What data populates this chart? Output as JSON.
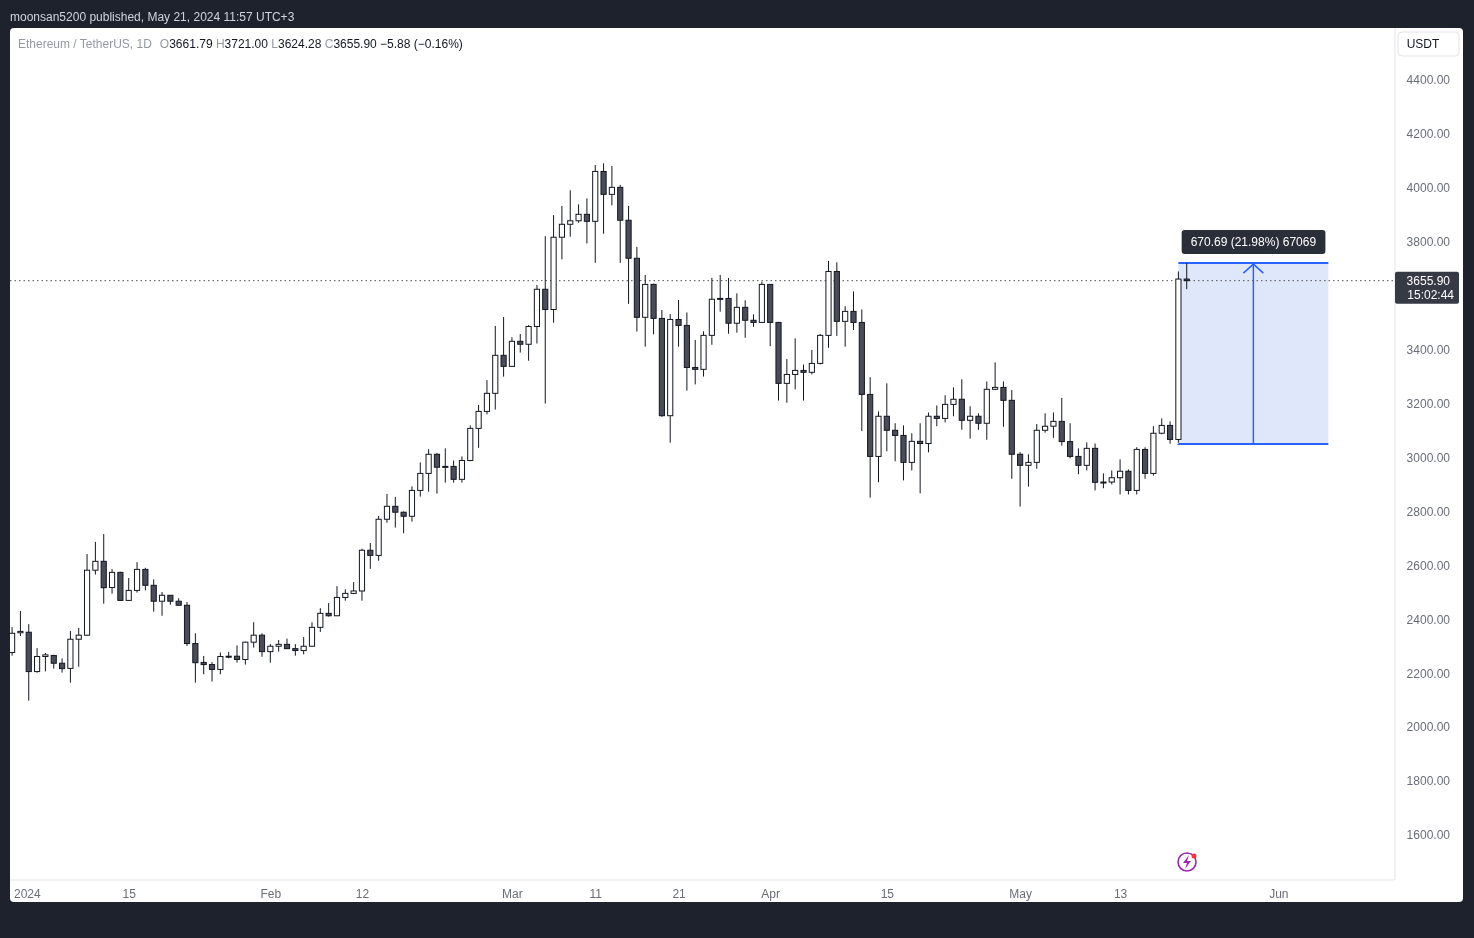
{
  "chart_data": {
    "type": "candlestick",
    "title": "Ethereum / TetherUS, 1D",
    "subtitle": "O3661.79 H3721.00 L3624.28 C3655.90 −5.88 (−0.16%)",
    "ylabel": "USDT",
    "annotations": [
      "moonsan5200 published, May 21, 2024 11:57 UTC+3",
      "15:02:44"
    ],
    "x": [
      "2024-01-01",
      "2024-01-02",
      "2024-01-03",
      "2024-01-04",
      "2024-01-05",
      "2024-01-06",
      "2024-01-07",
      "2024-01-08",
      "2024-01-09",
      "2024-01-10",
      "2024-01-11",
      "2024-01-12",
      "2024-01-13",
      "2024-01-14",
      "2024-01-15",
      "2024-01-16",
      "2024-01-17",
      "2024-01-18",
      "2024-01-19",
      "2024-01-20",
      "2024-01-21",
      "2024-01-22",
      "2024-01-23",
      "2024-01-24",
      "2024-01-25",
      "2024-01-26",
      "2024-01-27",
      "2024-01-28",
      "2024-01-29",
      "2024-01-30",
      "2024-01-31",
      "2024-02-01",
      "2024-02-02",
      "2024-02-03",
      "2024-02-04",
      "2024-02-05",
      "2024-02-06",
      "2024-02-07",
      "2024-02-08",
      "2024-02-09",
      "2024-02-10",
      "2024-02-11",
      "2024-02-12",
      "2024-02-13",
      "2024-02-14",
      "2024-02-15",
      "2024-02-16",
      "2024-02-17",
      "2024-02-18",
      "2024-02-19",
      "2024-02-20",
      "2024-02-21",
      "2024-02-22",
      "2024-02-23",
      "2024-02-24",
      "2024-02-25",
      "2024-02-26",
      "2024-02-27",
      "2024-02-28",
      "2024-02-29",
      "2024-03-01",
      "2024-03-02",
      "2024-03-03",
      "2024-03-04",
      "2024-03-05",
      "2024-03-06",
      "2024-03-07",
      "2024-03-08",
      "2024-03-09",
      "2024-03-10",
      "2024-03-11",
      "2024-03-12",
      "2024-03-13",
      "2024-03-14",
      "2024-03-15",
      "2024-03-16",
      "2024-03-17",
      "2024-03-18",
      "2024-03-19",
      "2024-03-20",
      "2024-03-21",
      "2024-03-22",
      "2024-03-23",
      "2024-03-24",
      "2024-03-25",
      "2024-03-26",
      "2024-03-27",
      "2024-03-28",
      "2024-03-29",
      "2024-03-30",
      "2024-03-31",
      "2024-04-01",
      "2024-04-02",
      "2024-04-03",
      "2024-04-04",
      "2024-04-05",
      "2024-04-06",
      "2024-04-07",
      "2024-04-08",
      "2024-04-09",
      "2024-04-10",
      "2024-04-11",
      "2024-04-12",
      "2024-04-13",
      "2024-04-14",
      "2024-04-15",
      "2024-04-16",
      "2024-04-17",
      "2024-04-18",
      "2024-04-19",
      "2024-04-20",
      "2024-04-21",
      "2024-04-22",
      "2024-04-23",
      "2024-04-24",
      "2024-04-25",
      "2024-04-26",
      "2024-04-27",
      "2024-04-28",
      "2024-04-29",
      "2024-04-30",
      "2024-05-01",
      "2024-05-02",
      "2024-05-03",
      "2024-05-04",
      "2024-05-05",
      "2024-05-06",
      "2024-05-07",
      "2024-05-08",
      "2024-05-09",
      "2024-05-10",
      "2024-05-11",
      "2024-05-12",
      "2024-05-13",
      "2024-05-14",
      "2024-05-15",
      "2024-05-16",
      "2024-05-17",
      "2024-05-18",
      "2024-05-19",
      "2024-05-20",
      "2024-05-21"
    ],
    "ohlc": [
      [
        2277,
        2371,
        2265,
        2348
      ],
      [
        2350,
        2431,
        2338,
        2355
      ],
      [
        2352,
        2382,
        2098,
        2206
      ],
      [
        2206,
        2293,
        2202,
        2262
      ],
      [
        2262,
        2275,
        2207,
        2268
      ],
      [
        2266,
        2268,
        2217,
        2237
      ],
      [
        2237,
        2255,
        2202,
        2217
      ],
      [
        2218,
        2357,
        2165,
        2326
      ],
      [
        2326,
        2368,
        2224,
        2341
      ],
      [
        2341,
        2642,
        2339,
        2582
      ],
      [
        2582,
        2687,
        2566,
        2615
      ],
      [
        2615,
        2716,
        2458,
        2517
      ],
      [
        2518,
        2586,
        2495,
        2574
      ],
      [
        2574,
        2576,
        2468,
        2470
      ],
      [
        2470,
        2553,
        2468,
        2507
      ],
      [
        2507,
        2612,
        2499,
        2585
      ],
      [
        2585,
        2591,
        2507,
        2526
      ],
      [
        2526,
        2548,
        2428,
        2467
      ],
      [
        2467,
        2501,
        2413,
        2489
      ],
      [
        2489,
        2490,
        2454,
        2467
      ],
      [
        2467,
        2478,
        2451,
        2452
      ],
      [
        2452,
        2464,
        2301,
        2310
      ],
      [
        2310,
        2348,
        2165,
        2239
      ],
      [
        2240,
        2264,
        2196,
        2232
      ],
      [
        2232,
        2241,
        2169,
        2214
      ],
      [
        2214,
        2277,
        2196,
        2262
      ],
      [
        2262,
        2279,
        2255,
        2263
      ],
      [
        2263,
        2303,
        2239,
        2251
      ],
      [
        2251,
        2317,
        2232,
        2315
      ],
      [
        2315,
        2389,
        2295,
        2341
      ],
      [
        2341,
        2348,
        2261,
        2280
      ],
      [
        2280,
        2308,
        2239,
        2300
      ],
      [
        2300,
        2323,
        2280,
        2307
      ],
      [
        2307,
        2328,
        2290,
        2291
      ],
      [
        2291,
        2308,
        2265,
        2284
      ],
      [
        2284,
        2334,
        2270,
        2300
      ],
      [
        2300,
        2389,
        2299,
        2370
      ],
      [
        2370,
        2441,
        2353,
        2422
      ],
      [
        2422,
        2460,
        2410,
        2413
      ],
      [
        2413,
        2523,
        2412,
        2481
      ],
      [
        2481,
        2511,
        2469,
        2496
      ],
      [
        2496,
        2538,
        2493,
        2505
      ],
      [
        2505,
        2662,
        2469,
        2656
      ],
      [
        2656,
        2683,
        2587,
        2637
      ],
      [
        2637,
        2783,
        2617,
        2771
      ],
      [
        2771,
        2865,
        2758,
        2819
      ],
      [
        2819,
        2854,
        2740,
        2797
      ],
      [
        2797,
        2800,
        2719,
        2782
      ],
      [
        2782,
        2893,
        2762,
        2878
      ],
      [
        2878,
        2982,
        2855,
        2941
      ],
      [
        2941,
        3031,
        2873,
        3012
      ],
      [
        3012,
        3017,
        2866,
        2964
      ],
      [
        2964,
        3034,
        2907,
        2967
      ],
      [
        2967,
        2989,
        2907,
        2919
      ],
      [
        2919,
        3004,
        2907,
        2989
      ],
      [
        2989,
        3119,
        2986,
        3108
      ],
      [
        3108,
        3195,
        3036,
        3171
      ],
      [
        3171,
        3287,
        3160,
        3238
      ],
      [
        3238,
        3488,
        3178,
        3379
      ],
      [
        3379,
        3521,
        3300,
        3338
      ],
      [
        3338,
        3446,
        3336,
        3431
      ],
      [
        3431,
        3458,
        3389,
        3420
      ],
      [
        3420,
        3491,
        3359,
        3486
      ],
      [
        3486,
        3640,
        3423,
        3624
      ],
      [
        3624,
        3821,
        3200,
        3549
      ],
      [
        3549,
        3899,
        3500,
        3817
      ],
      [
        3817,
        3933,
        3735,
        3865
      ],
      [
        3865,
        3991,
        3819,
        3878
      ],
      [
        3878,
        3939,
        3871,
        3902
      ],
      [
        3902,
        3961,
        3794,
        3876
      ],
      [
        3876,
        4085,
        3722,
        4061
      ],
      [
        4061,
        4091,
        3830,
        3976
      ],
      [
        3976,
        4081,
        3935,
        4002
      ],
      [
        4002,
        4011,
        3722,
        3880
      ],
      [
        3880,
        3933,
        3570,
        3739
      ],
      [
        3739,
        3781,
        3467,
        3520
      ],
      [
        3520,
        3677,
        3411,
        3642
      ],
      [
        3642,
        3645,
        3457,
        3516
      ],
      [
        3516,
        3547,
        3151,
        3155
      ],
      [
        3155,
        3532,
        3055,
        3512
      ],
      [
        3512,
        3584,
        3411,
        3490
      ],
      [
        3490,
        3538,
        3248,
        3334
      ],
      [
        3334,
        3436,
        3271,
        3327
      ],
      [
        3327,
        3468,
        3300,
        3453
      ],
      [
        3453,
        3666,
        3418,
        3587
      ],
      [
        3587,
        3677,
        3541,
        3590
      ],
      [
        3590,
        3666,
        3459,
        3498
      ],
      [
        3498,
        3609,
        3463,
        3557
      ],
      [
        3557,
        3583,
        3444,
        3509
      ],
      [
        3509,
        3531,
        3485,
        3501
      ],
      [
        3501,
        3652,
        3500,
        3642
      ],
      [
        3642,
        3643,
        3413,
        3501
      ],
      [
        3501,
        3503,
        3211,
        3275
      ],
      [
        3275,
        3365,
        3203,
        3308
      ],
      [
        3308,
        3442,
        3253,
        3323
      ],
      [
        3323,
        3345,
        3211,
        3316
      ],
      [
        3316,
        3399,
        3308,
        3349
      ],
      [
        3349,
        3458,
        3345,
        3453
      ],
      [
        3453,
        3729,
        3407,
        3690
      ],
      [
        3690,
        3724,
        3451,
        3505
      ],
      [
        3505,
        3561,
        3411,
        3542
      ],
      [
        3542,
        3616,
        3473,
        3501
      ],
      [
        3501,
        3549,
        3098,
        3234
      ],
      [
        3234,
        3298,
        2851,
        3004
      ],
      [
        3004,
        3171,
        2908,
        3153
      ],
      [
        3153,
        3275,
        3023,
        3101
      ],
      [
        3101,
        3127,
        2986,
        3082
      ],
      [
        3082,
        3119,
        2915,
        2982
      ],
      [
        2982,
        3090,
        2952,
        3060
      ],
      [
        3060,
        3127,
        2867,
        3052
      ],
      [
        3052,
        3167,
        3019,
        3153
      ],
      [
        3153,
        3193,
        3116,
        3145
      ],
      [
        3145,
        3231,
        3130,
        3197
      ],
      [
        3197,
        3260,
        3153,
        3216
      ],
      [
        3216,
        3290,
        3103,
        3138
      ],
      [
        3138,
        3190,
        3070,
        3153
      ],
      [
        3153,
        3164,
        3103,
        3127
      ],
      [
        3127,
        3282,
        3066,
        3253
      ],
      [
        3253,
        3353,
        3250,
        3260
      ],
      [
        3260,
        3282,
        3114,
        3212
      ],
      [
        3212,
        3250,
        2921,
        3012
      ],
      [
        3012,
        3020,
        2818,
        2971
      ],
      [
        2971,
        3012,
        2892,
        2982
      ],
      [
        2982,
        3124,
        2958,
        3101
      ],
      [
        3101,
        3164,
        3092,
        3116
      ],
      [
        3116,
        3167,
        3073,
        3134
      ],
      [
        3134,
        3221,
        3044,
        3059
      ],
      [
        3059,
        3127,
        2997,
        3004
      ],
      [
        3004,
        3034,
        2938,
        2971
      ],
      [
        2971,
        3056,
        2952,
        3034
      ],
      [
        3034,
        3052,
        2878,
        2908
      ],
      [
        2908,
        2941,
        2886,
        2909
      ],
      [
        2909,
        2952,
        2900,
        2925
      ],
      [
        2925,
        2993,
        2863,
        2949
      ],
      [
        2949,
        2956,
        2863,
        2878
      ],
      [
        2878,
        3038,
        2863,
        3030
      ],
      [
        3030,
        3038,
        2921,
        2941
      ],
      [
        2941,
        3116,
        2933,
        3090
      ],
      [
        3090,
        3145,
        3086,
        3119
      ],
      [
        3119,
        3134,
        3051,
        3067
      ],
      [
        3067,
        3690,
        3055,
        3661.79
      ],
      [
        3661.79,
        3721.0,
        3624.28,
        3655.9
      ]
    ],
    "xlim": [
      "2023-12-31T18:00",
      "2024-06-15"
    ],
    "xticks": [
      {
        "value": "2024-01-01",
        "label": "2024"
      },
      {
        "value": "2024-01-15",
        "label": "15"
      },
      {
        "value": "2024-02-01",
        "label": "Feb"
      },
      {
        "value": "2024-02-12",
        "label": "12"
      },
      {
        "value": "2024-03-01",
        "label": "Mar"
      },
      {
        "value": "2024-03-11",
        "label": "11"
      },
      {
        "value": "2024-03-21",
        "label": "21"
      },
      {
        "value": "2024-04-01",
        "label": "Apr"
      },
      {
        "value": "2024-04-15",
        "label": "15"
      },
      {
        "value": "2024-05-01",
        "label": "May"
      },
      {
        "value": "2024-05-13",
        "label": "13"
      },
      {
        "value": "2024-06-01",
        "label": "Jun"
      }
    ],
    "ylim": [
      1433,
      4593
    ],
    "yticks": [
      {
        "value": 1600,
        "label": "1600.00"
      },
      {
        "value": 1800,
        "label": "1800.00"
      },
      {
        "value": 2000,
        "label": "2000.00"
      },
      {
        "value": 2200,
        "label": "2200.00"
      },
      {
        "value": 2400,
        "label": "2400.00"
      },
      {
        "value": 2600,
        "label": "2600.00"
      },
      {
        "value": 2800,
        "label": "2800.00"
      },
      {
        "value": 3000,
        "label": "3000.00"
      },
      {
        "value": 3200,
        "label": "3200.00"
      },
      {
        "value": 3400,
        "label": "3400.00"
      },
      {
        "value": 3800,
        "label": "3800.00"
      },
      {
        "value": 4000,
        "label": "4000.00"
      },
      {
        "value": 4200,
        "label": "4200.00"
      },
      {
        "value": 4400,
        "label": "4400.00"
      }
    ],
    "ref_lines": [
      {
        "axis": "y",
        "value": 3655.9,
        "label": "3655.90",
        "line_style": "dotted"
      }
    ],
    "bands": [
      {
        "axis": "y",
        "from": 3050.31,
        "to": 3721.0,
        "label": "670.69 (21.98%) 67069",
        "color": "#dbe4fb"
      }
    ]
  }
}
